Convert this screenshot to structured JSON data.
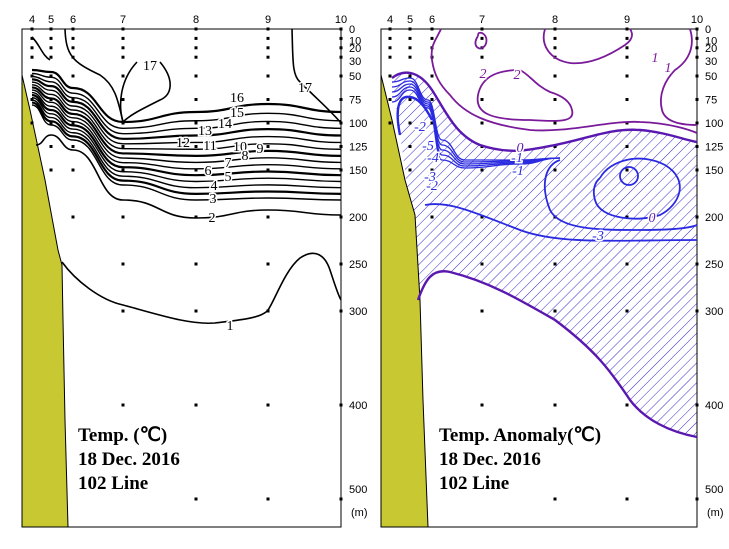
{
  "chart_data": [
    {
      "type": "contour",
      "title": "Temp. (℃)",
      "date": "18 Dec. 2016",
      "line": "102 Line",
      "stations": [
        "4",
        "5",
        "6",
        "7",
        "8",
        "9",
        "10"
      ],
      "depth_ticks": [
        0,
        10,
        20,
        30,
        50,
        75,
        100,
        125,
        150,
        200,
        250,
        300,
        400,
        500
      ],
      "depth_unit": "(m)",
      "ylim": [
        0,
        500
      ],
      "contour_levels": [
        1,
        2,
        3,
        4,
        5,
        6,
        7,
        8,
        9,
        10,
        11,
        12,
        13,
        14,
        15,
        16,
        17
      ],
      "contour_labels": [
        "17",
        "17",
        "16",
        "15",
        "14",
        "13",
        "12",
        "11",
        "10",
        "9",
        "8",
        "7",
        "6",
        "5",
        "4",
        "3",
        "2",
        "1"
      ],
      "line_color": "#000000",
      "land_color": "#c8c832"
    },
    {
      "type": "contour",
      "title": "Temp. Anomaly(℃)",
      "date": "18 Dec. 2016",
      "line": "102 Line",
      "stations": [
        "4",
        "5",
        "6",
        "7",
        "8",
        "9",
        "10"
      ],
      "depth_ticks": [
        0,
        10,
        20,
        30,
        50,
        75,
        100,
        125,
        150,
        200,
        250,
        300,
        400,
        500
      ],
      "depth_unit": "(m)",
      "ylim": [
        0,
        500
      ],
      "contour_labels": [
        "1",
        "2",
        "2",
        "1",
        "0",
        "-1",
        "-1",
        "-2",
        "-3",
        "-4",
        "-5",
        "-2",
        "-3",
        "0"
      ],
      "negative_hatched": true,
      "positive_color": "#7a1a9a",
      "zero_color": "#5a18b0",
      "negative_color": "#2a2ae0",
      "land_color": "#c8c832"
    }
  ]
}
